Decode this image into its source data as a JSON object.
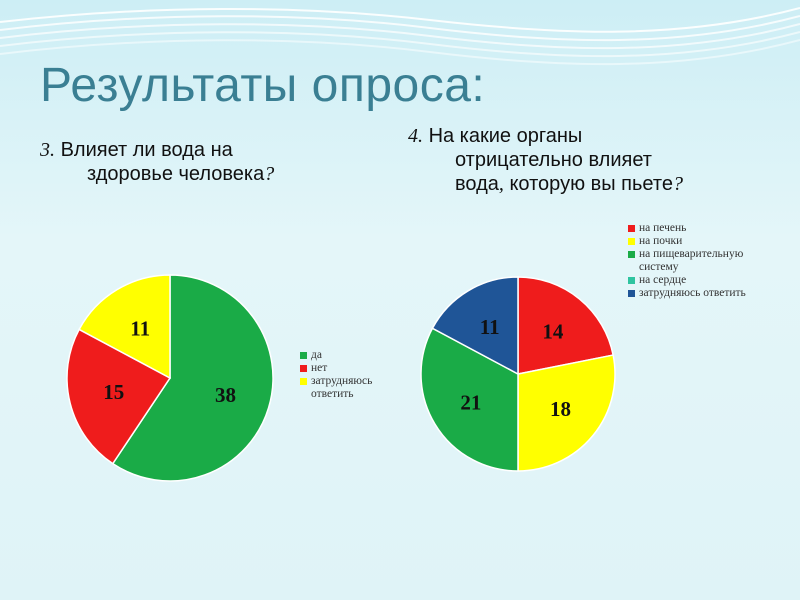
{
  "slide": {
    "title": "Результаты опроса:",
    "colors": {
      "title": "#3a7f93",
      "background": "#dff3f7"
    }
  },
  "questions": [
    {
      "number": "3.",
      "line1": "Влияет ли вода на",
      "line2": "здоровье человека",
      "mark": "?"
    },
    {
      "number": "4.",
      "line1": "На какие органы",
      "line2": "отрицательно влияет",
      "line3": "вода",
      "line3b": ", которую вы пьете",
      "mark": "?"
    }
  ],
  "chart_data": [
    {
      "type": "pie",
      "categories": [
        "да",
        "нет",
        "затрудняюсь ответить"
      ],
      "values": [
        38,
        15,
        11
      ],
      "colors": [
        "#1aab47",
        "#ef1c1c",
        "#ffff00"
      ],
      "legend": "right"
    },
    {
      "type": "pie",
      "categories": [
        "на печень",
        "на почки",
        "на пищеварительную систему",
        "на сердце",
        "затрудняюсь ответить"
      ],
      "values": [
        14,
        18,
        21,
        0,
        11
      ],
      "colors": [
        "#ef1c1c",
        "#ffff00",
        "#1aab47",
        "#2ec4a0",
        "#1f5597"
      ],
      "legend": "top-right"
    }
  ]
}
